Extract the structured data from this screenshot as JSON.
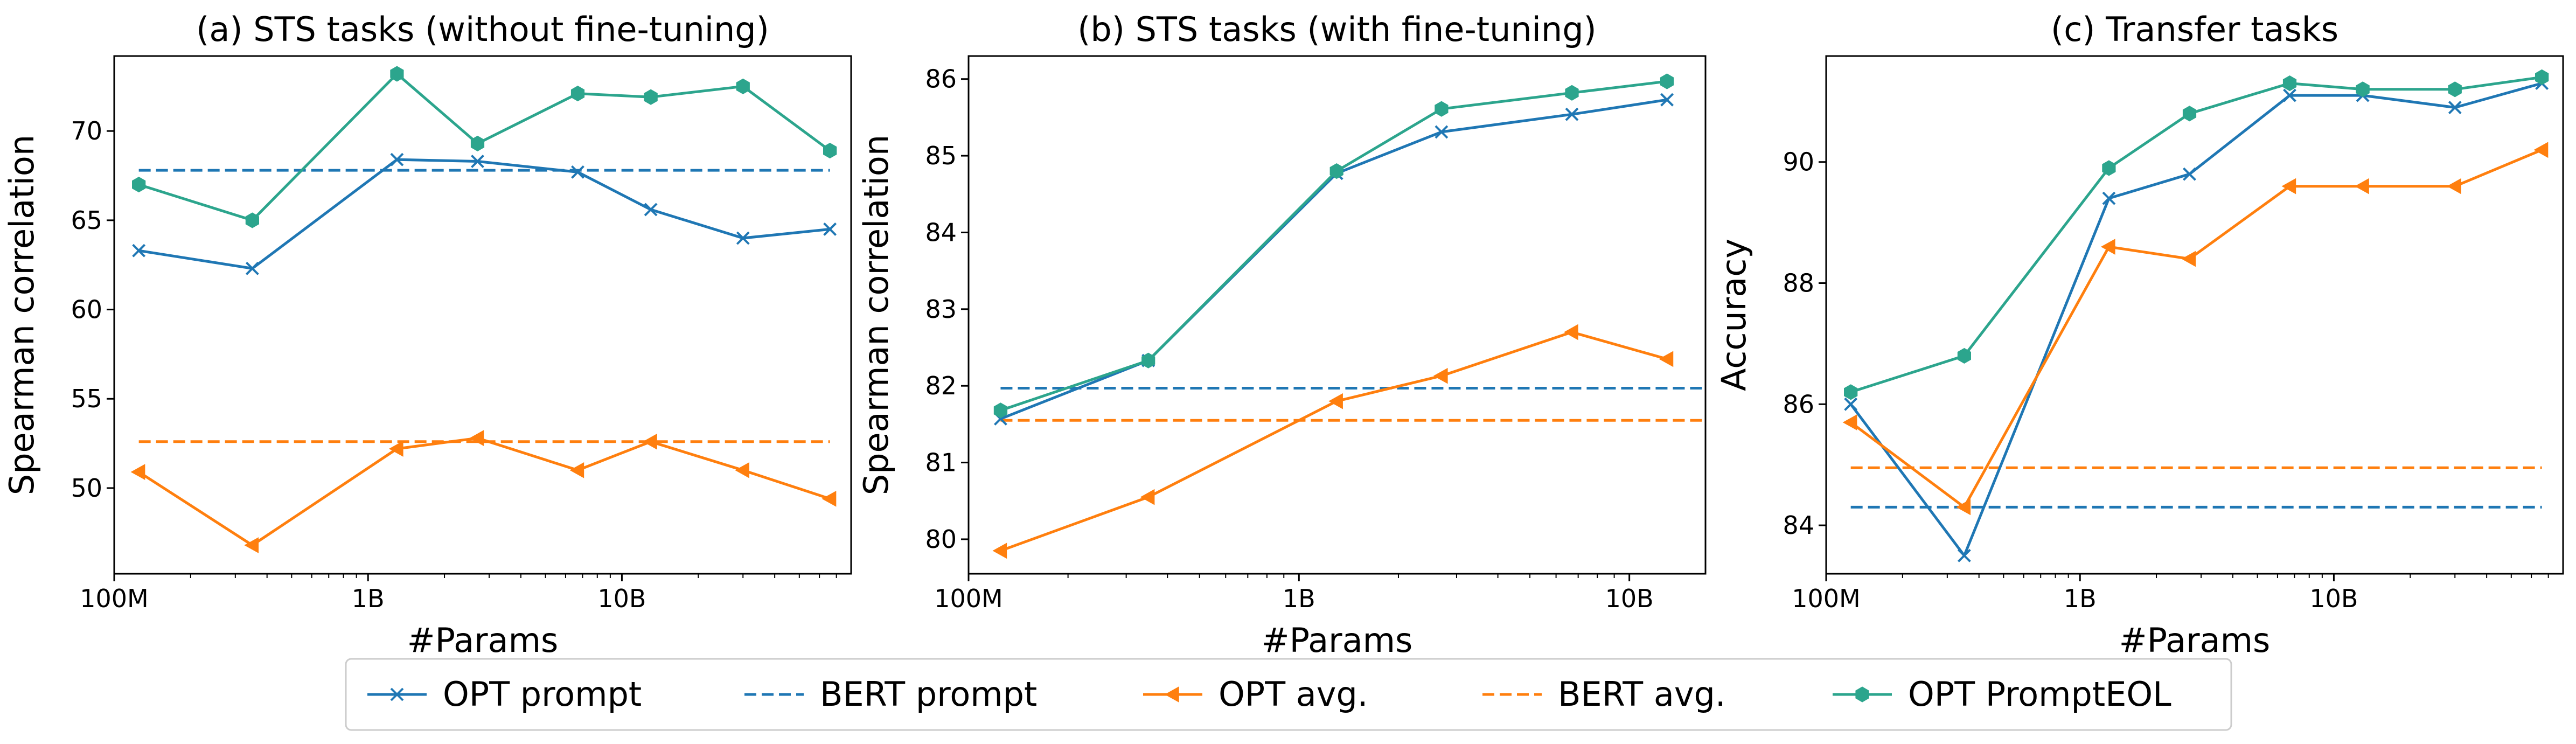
{
  "colors": {
    "opt_prompt": "#1f77b4",
    "bert_prompt": "#1f77b4",
    "opt_avg": "#ff7f0e",
    "bert_avg": "#ff7f0e",
    "opt_prompteol": "#2ca58d"
  },
  "legend": {
    "placement": "bottom-center",
    "items": [
      {
        "key": "opt_prompt",
        "label": "OPT prompt",
        "style": "solid",
        "marker": "x"
      },
      {
        "key": "bert_prompt",
        "label": "BERT prompt",
        "style": "dashed",
        "marker": "none"
      },
      {
        "key": "opt_avg",
        "label": "OPT avg.",
        "style": "solid",
        "marker": "triangle-left"
      },
      {
        "key": "bert_avg",
        "label": "BERT avg.",
        "style": "dashed",
        "marker": "none"
      },
      {
        "key": "opt_prompteol",
        "label": "OPT PromptEOL",
        "style": "solid",
        "marker": "hexagon"
      }
    ]
  },
  "chart_data": [
    {
      "type": "line",
      "title": "(a) STS tasks (without fine-tuning)",
      "xlabel": "#Params",
      "ylabel": "Spearman correlation",
      "xscale": "log",
      "xlim": [
        100000000,
        80000000000
      ],
      "ylim": [
        45.2,
        74.2
      ],
      "yticks": [
        50,
        55,
        60,
        65,
        70
      ],
      "xticks": [
        {
          "value": 100000000,
          "label": "100M"
        },
        {
          "value": 1000000000,
          "label": "1B"
        },
        {
          "value": 10000000000,
          "label": "10B"
        }
      ],
      "x": [
        125000000,
        350000000,
        1300000000,
        2700000000,
        6700000000,
        13000000000,
        30000000000,
        66000000000
      ],
      "series": [
        {
          "name": "OPT prompt",
          "key": "opt_prompt",
          "values": [
            63.3,
            62.3,
            68.4,
            68.3,
            67.7,
            65.6,
            64.0,
            64.5
          ]
        },
        {
          "name": "OPT avg.",
          "key": "opt_avg",
          "values": [
            50.9,
            46.8,
            52.2,
            52.8,
            51.0,
            52.6,
            51.0,
            49.4
          ]
        },
        {
          "name": "OPT PromptEOL",
          "key": "opt_prompteol",
          "values": [
            67.0,
            65.0,
            73.2,
            69.3,
            72.1,
            71.9,
            72.5,
            68.9
          ]
        }
      ],
      "baselines": [
        {
          "name": "BERT prompt",
          "key": "bert_prompt",
          "value": 67.8
        },
        {
          "name": "BERT avg.",
          "key": "bert_avg",
          "value": 52.6
        }
      ]
    },
    {
      "type": "line",
      "title": "(b) STS tasks (with fine-tuning)",
      "xlabel": "#Params",
      "ylabel": "Spearman correlation",
      "xscale": "log",
      "xlim": [
        100000000,
        17000000000
      ],
      "ylim": [
        79.55,
        86.3
      ],
      "yticks": [
        80,
        81,
        82,
        83,
        84,
        85,
        86
      ],
      "xticks": [
        {
          "value": 100000000,
          "label": "100M"
        },
        {
          "value": 1000000000,
          "label": "1B"
        },
        {
          "value": 10000000000,
          "label": "10B"
        }
      ],
      "x": [
        125000000,
        350000000,
        1300000000,
        2700000000,
        6700000000,
        13000000000
      ],
      "series": [
        {
          "name": "OPT prompt",
          "key": "opt_prompt",
          "values": [
            81.57,
            82.33,
            84.77,
            85.31,
            85.54,
            85.73
          ]
        },
        {
          "name": "OPT avg.",
          "key": "opt_avg",
          "values": [
            79.85,
            80.55,
            81.8,
            82.13,
            82.7,
            82.35
          ]
        },
        {
          "name": "OPT PromptEOL",
          "key": "opt_prompteol",
          "values": [
            81.68,
            82.33,
            84.8,
            85.61,
            85.82,
            85.97
          ]
        }
      ],
      "baselines": [
        {
          "name": "BERT prompt",
          "key": "bert_prompt",
          "value": 81.97
        },
        {
          "name": "BERT avg.",
          "key": "bert_avg",
          "value": 81.55
        }
      ]
    },
    {
      "type": "line",
      "title": "(c) Transfer tasks",
      "xlabel": "#Params",
      "ylabel": "Accuracy",
      "xscale": "log",
      "xlim": [
        100000000,
        80000000000
      ],
      "ylim": [
        83.2,
        91.75
      ],
      "yticks": [
        84,
        86,
        88,
        90
      ],
      "xticks": [
        {
          "value": 100000000,
          "label": "100M"
        },
        {
          "value": 1000000000,
          "label": "1B"
        },
        {
          "value": 10000000000,
          "label": "10B"
        }
      ],
      "x": [
        125000000,
        350000000,
        1300000000,
        2700000000,
        6700000000,
        13000000000,
        30000000000,
        66000000000
      ],
      "series": [
        {
          "name": "OPT prompt",
          "key": "opt_prompt",
          "values": [
            86.0,
            83.5,
            89.4,
            89.8,
            91.1,
            91.1,
            90.9,
            91.3
          ]
        },
        {
          "name": "OPT avg.",
          "key": "opt_avg",
          "values": [
            85.7,
            84.3,
            88.6,
            88.4,
            89.6,
            89.6,
            89.6,
            90.2
          ]
        },
        {
          "name": "OPT PromptEOL",
          "key": "opt_prompteol",
          "values": [
            86.2,
            86.8,
            89.9,
            90.8,
            91.3,
            91.2,
            91.2,
            91.4
          ]
        }
      ],
      "baselines": [
        {
          "name": "BERT prompt",
          "key": "bert_prompt",
          "value": 84.3
        },
        {
          "name": "BERT avg.",
          "key": "bert_avg",
          "value": 84.95
        }
      ]
    }
  ]
}
